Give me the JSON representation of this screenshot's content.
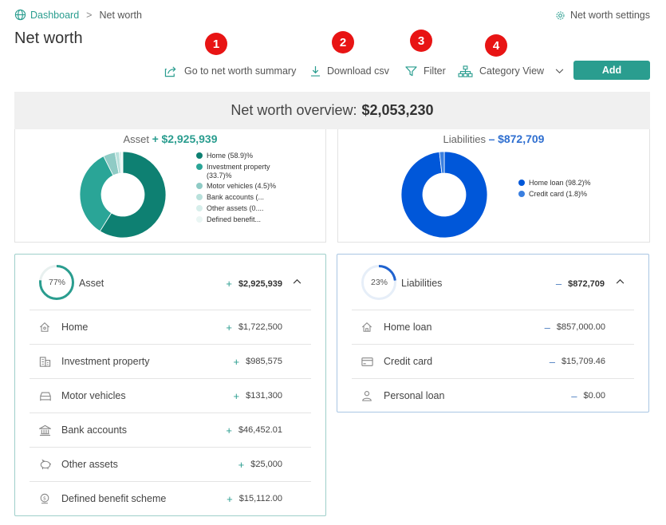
{
  "breadcrumb": {
    "home": "Dashboard",
    "separator": ">",
    "current": "Net worth"
  },
  "settings_label": "Net worth settings",
  "page_title": "Net worth",
  "markers": [
    "1",
    "2",
    "3",
    "4"
  ],
  "toolbar": {
    "summary": "Go to net worth summary",
    "download": "Download csv",
    "filter": "Filter",
    "category_view": "Category View",
    "add": "Add"
  },
  "overview": {
    "label": "Net worth overview:",
    "amount": "$2,053,230"
  },
  "colors": {
    "accent": "#2a9d8f",
    "liability": "#0057d9",
    "marker": "#e81414"
  },
  "asset_chart": {
    "label": "Asset",
    "sign": "+",
    "amount": "$2,925,939",
    "legend": [
      "Home (58.9)%",
      "Investment property (33.7)%",
      "Motor vehicles (4.5)%",
      "Bank accounts (...",
      "Other assets (0....",
      "Defined benefit..."
    ]
  },
  "liability_chart": {
    "label": "Liabilities",
    "sign": "–",
    "amount": "$872,709",
    "legend": [
      "Home loan (98.2)%",
      "Credit card (1.8)%"
    ]
  },
  "chart_data": [
    {
      "type": "pie",
      "categories": [
        "Home",
        "Investment property",
        "Motor vehicles",
        "Bank accounts",
        "Other assets",
        "Defined benefit scheme"
      ],
      "values": [
        58.9,
        33.7,
        4.5,
        1.6,
        0.8,
        0.5
      ],
      "colors": [
        "#0e8072",
        "#2aa597",
        "#8fcbc5",
        "#b9e1dc",
        "#d7eeeb",
        "#eaf6f4"
      ]
    },
    {
      "type": "pie",
      "categories": [
        "Home loan",
        "Credit card"
      ],
      "values": [
        98.2,
        1.8
      ],
      "colors": [
        "#0057d9",
        "#3a7fe0"
      ]
    }
  ],
  "asset_card": {
    "percent": "77%",
    "percent_value": 77,
    "label": "Asset",
    "sign": "+",
    "total": "$2,925,939",
    "items": [
      {
        "label": "Home",
        "sign": "+",
        "value": "$1,722,500",
        "icon": "home-icon"
      },
      {
        "label": "Investment property",
        "sign": "+",
        "value": "$985,575",
        "icon": "building-icon"
      },
      {
        "label": "Motor vehicles",
        "sign": "+",
        "value": "$131,300",
        "icon": "car-icon"
      },
      {
        "label": "Bank accounts",
        "sign": "+",
        "value": "$46,452.01",
        "icon": "bank-icon"
      },
      {
        "label": "Other assets",
        "sign": "+",
        "value": "$25,000",
        "icon": "piggy-bank-icon"
      },
      {
        "label": "Defined benefit scheme",
        "sign": "+",
        "value": "$15,112.00",
        "icon": "dollar-coin-icon"
      }
    ]
  },
  "liability_card": {
    "percent": "23%",
    "percent_value": 23,
    "label": "Liabilities",
    "sign": "–",
    "total": "$872,709",
    "items": [
      {
        "label": "Home loan",
        "sign": "–",
        "value": "$857,000.00",
        "icon": "home-loan-icon"
      },
      {
        "label": "Credit card",
        "sign": "–",
        "value": "$15,709.46",
        "icon": "credit-card-icon"
      },
      {
        "label": "Personal loan",
        "sign": "–",
        "value": "$0.00",
        "icon": "person-icon"
      }
    ]
  }
}
